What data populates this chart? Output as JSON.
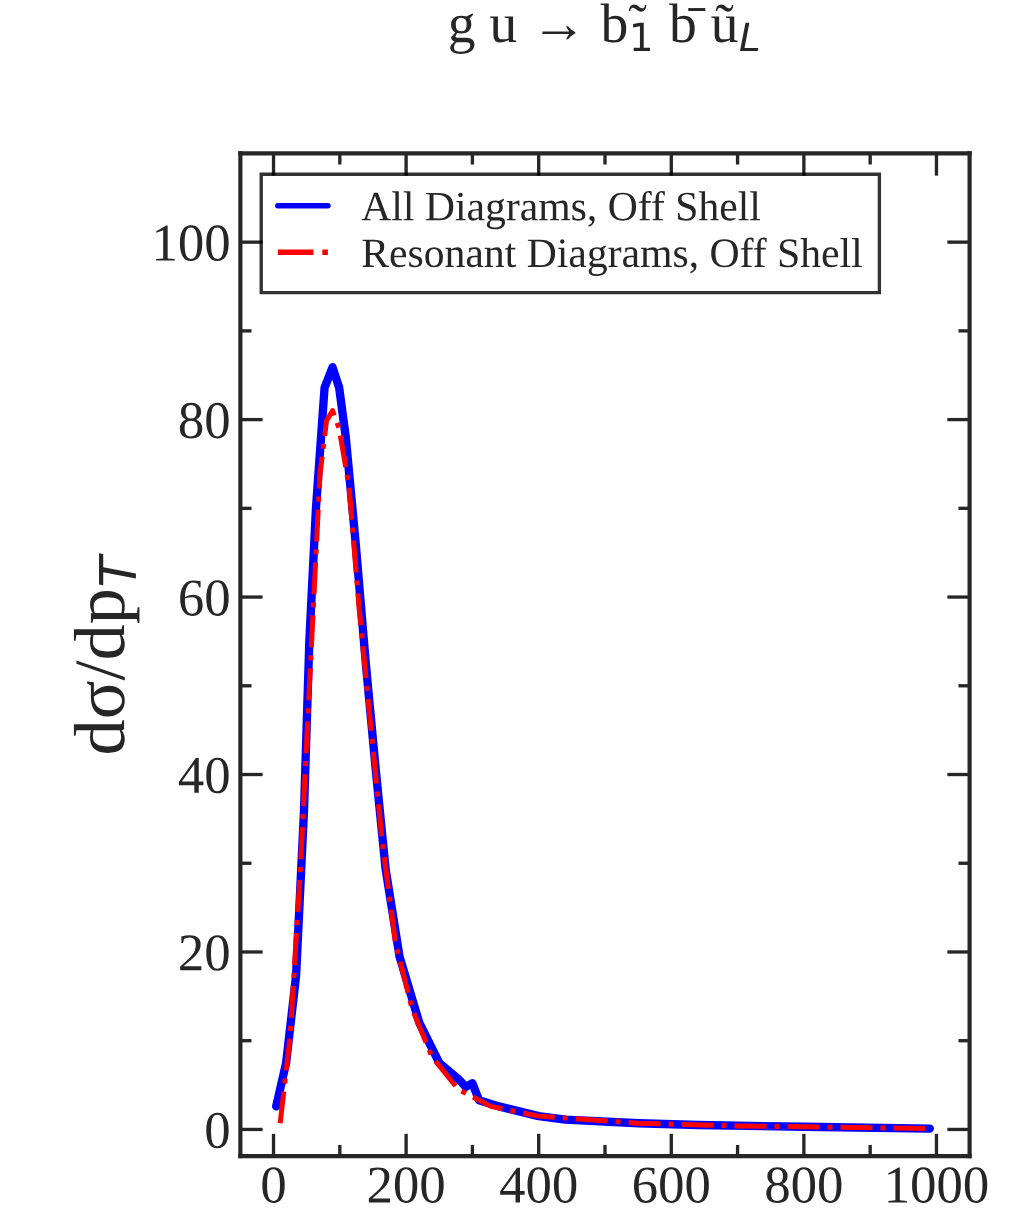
{
  "chart_data": {
    "type": "line",
    "title": "g u → b̃$_{1}$ b̄ ũ$_{L}$",
    "ylabel": "dσ/dp$_{T}$",
    "xlim": [
      -50,
      1050
    ],
    "ylim": [
      -3,
      110
    ],
    "xticks": [
      0,
      200,
      400,
      600,
      800,
      1000
    ],
    "yticks": [
      0,
      20,
      40,
      60,
      80,
      100
    ],
    "grid": false,
    "legend": "top left",
    "marker": "none",
    "series": [
      {
        "name": "All Diagrams, Off Shell",
        "color": "#0000ff",
        "line_style": "solid",
        "x": [
          4,
          19,
          34,
          46,
          54,
          64,
          77,
          89,
          99,
          109,
          124,
          139,
          154,
          169,
          190,
          220,
          250,
          280,
          290,
          300,
          310,
          340,
          400,
          440,
          551,
          641,
          800,
          990
        ],
        "values": [
          2.6,
          7.5,
          17.3,
          36,
          55,
          70,
          83.6,
          85.9,
          83.6,
          78,
          66,
          52.7,
          40.7,
          29.4,
          19.5,
          12,
          7.5,
          5.6,
          4.8,
          5.2,
          3.3,
          2.6,
          1.5,
          1.1,
          0.7,
          0.5,
          0.3,
          0.1
        ]
      },
      {
        "name": "Resonant Diagrams, Off Shell",
        "color": "#ff0000",
        "line_style": "dashdot",
        "x": [
          10,
          25,
          40,
          50,
          60,
          70,
          80,
          89,
          99,
          114,
          129,
          149,
          164,
          184,
          209,
          239,
          279,
          328,
          400,
          550,
          700,
          990
        ],
        "values": [
          0.7,
          10.5,
          28.6,
          43.7,
          58.8,
          73.8,
          79.9,
          81,
          79,
          72.4,
          58.8,
          43.7,
          32.4,
          21,
          13.6,
          8.2,
          4.5,
          2.6,
          1.5,
          0.7,
          0.4,
          0.1
        ]
      }
    ]
  }
}
